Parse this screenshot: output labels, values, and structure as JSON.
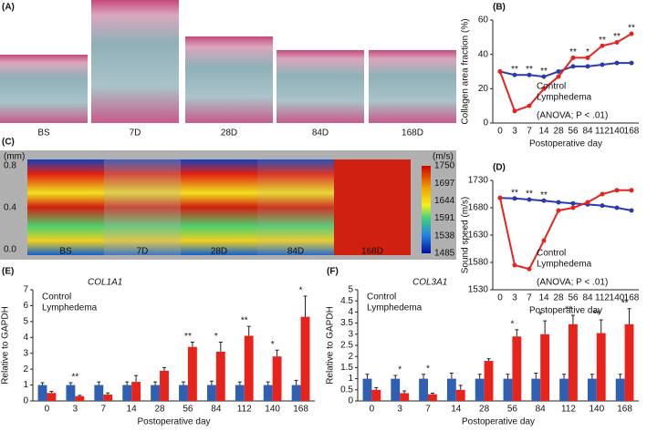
{
  "figure": {
    "panel_labels": [
      "(A)",
      "(B)",
      "(C)",
      "(D)",
      "(E)",
      "(F)"
    ],
    "histology_labels": [
      "BS",
      "7D",
      "28D",
      "84D",
      "168D"
    ],
    "elastography": {
      "labels": [
        "BS",
        "7D",
        "28D",
        "84D",
        "168D"
      ],
      "depth_unit": "(mm)",
      "depth_ticks": [
        "0.8",
        "0.4",
        "0.0"
      ],
      "speed_unit": "(m/s)",
      "speed_ticks": [
        "1750",
        "1697",
        "1644",
        "1591",
        "1538",
        "1485"
      ]
    }
  },
  "chart_data": [
    {
      "type": "line",
      "y_label": "Collagen area fraction (%)",
      "x_label": "Postoperative day",
      "categories": [
        "0",
        "3",
        "7",
        "14",
        "28",
        "56",
        "84",
        "112",
        "140",
        "168"
      ],
      "series": [
        {
          "name": "Control",
          "color": "#2a3bb0",
          "values": [
            30,
            28,
            28,
            27,
            30,
            33,
            33,
            34,
            35,
            35
          ]
        },
        {
          "name": "Lymphedema",
          "color": "#e8231c",
          "values": [
            30,
            7,
            10,
            20,
            27,
            38,
            38,
            45,
            47,
            52
          ]
        }
      ],
      "significance": [
        null,
        "**",
        "**",
        "**",
        null,
        "**",
        "*",
        "**",
        "**",
        "**"
      ],
      "annotation": "(ANOVA; P < .01)",
      "ylim": [
        0,
        60
      ],
      "yticks": [
        0,
        20,
        40,
        60
      ]
    },
    {
      "type": "line",
      "y_label": "Sound speed (m/s)",
      "x_label": "Postoperative day",
      "categories": [
        "0",
        "3",
        "7",
        "14",
        "28",
        "56",
        "84",
        "112",
        "140",
        "168"
      ],
      "series": [
        {
          "name": "Control",
          "color": "#2a3bb0",
          "values": [
            1698,
            1697,
            1695,
            1693,
            1690,
            1688,
            1686,
            1684,
            1680,
            1675
          ]
        },
        {
          "name": "Lymphedema",
          "color": "#e8231c",
          "values": [
            1698,
            1575,
            1568,
            1620,
            1675,
            1680,
            1690,
            1705,
            1712,
            1712
          ]
        }
      ],
      "significance": [
        null,
        "**",
        "**",
        "**",
        null,
        null,
        null,
        null,
        null,
        null
      ],
      "annotation": "(ANOVA; P < .01)",
      "ylim": [
        1530,
        1730
      ],
      "yticks": [
        1530,
        1580,
        1630,
        1680,
        1730
      ]
    },
    {
      "type": "bar",
      "title": "COL1A1",
      "y_label": "Relative to GAPDH",
      "x_label": "Postoperative day",
      "categories": [
        "0",
        "3",
        "7",
        "14",
        "28",
        "56",
        "84",
        "112",
        "140",
        "168"
      ],
      "series": [
        {
          "name": "Control",
          "color": "#2f5fb3",
          "values": [
            1,
            1,
            1,
            1,
            1,
            1,
            1,
            1,
            1,
            1
          ],
          "errors": [
            0.15,
            0.15,
            0.2,
            0.2,
            0.2,
            0.2,
            0.25,
            0.2,
            0.2,
            0.3
          ]
        },
        {
          "name": "Lymphedema",
          "color": "#e8231c",
          "values": [
            0.5,
            0.3,
            0.4,
            1.2,
            1.9,
            3.4,
            3.1,
            4.1,
            2.8,
            5.3
          ],
          "errors": [
            0.1,
            0.05,
            0.1,
            0.4,
            0.2,
            0.3,
            0.6,
            0.6,
            0.4,
            1.3
          ]
        }
      ],
      "significance": [
        null,
        "**",
        null,
        null,
        null,
        "**",
        "*",
        "**",
        "*",
        "*"
      ],
      "ylim": [
        0,
        7
      ],
      "yticks": [
        0,
        1,
        2,
        3,
        4,
        5,
        6,
        7
      ]
    },
    {
      "type": "bar",
      "title": "COL3A1",
      "y_label": "Relative to GAPDH",
      "x_label": "Postoperative day",
      "categories": [
        "0",
        "3",
        "7",
        "14",
        "28",
        "56",
        "84",
        "112",
        "140",
        "168"
      ],
      "series": [
        {
          "name": "Control",
          "color": "#2f5fb3",
          "values": [
            1,
            1,
            1,
            1,
            1,
            1,
            1,
            1,
            1,
            1
          ],
          "errors": [
            0.2,
            0.15,
            0.2,
            0.25,
            0.2,
            0.2,
            0.25,
            0.2,
            0.2,
            0.2
          ]
        },
        {
          "name": "Lymphedema",
          "color": "#e8231c",
          "values": [
            0.5,
            0.35,
            0.3,
            0.5,
            1.8,
            2.9,
            3.0,
            3.45,
            3.05,
            3.45
          ],
          "errors": [
            0.1,
            0.1,
            0.05,
            0.2,
            0.1,
            0.3,
            0.6,
            0.4,
            0.6,
            0.7
          ]
        }
      ],
      "significance": [
        null,
        "*",
        "*",
        null,
        null,
        "*",
        "*",
        "**",
        "**",
        "**"
      ],
      "ylim": [
        0,
        5
      ],
      "yticks": [
        0,
        0.5,
        1,
        1.5,
        2,
        2.5,
        3,
        3.5,
        4,
        4.5,
        5
      ]
    }
  ]
}
